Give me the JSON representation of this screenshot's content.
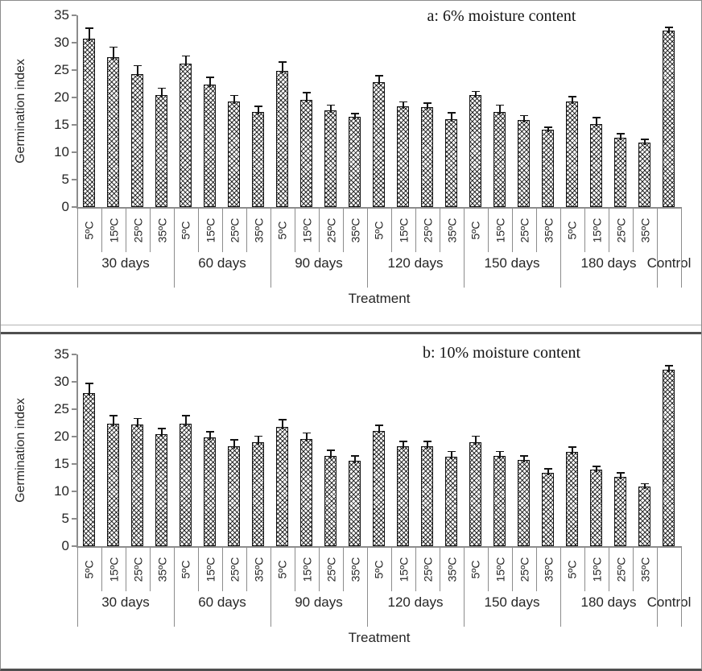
{
  "colors": {
    "bar_fill": "#ffffff",
    "bar_hatch": "#000000",
    "axis": "#8c8c8c",
    "text": "#262626"
  },
  "chart_data": [
    {
      "type": "bar",
      "panel": "a",
      "title": "a: 6% moisture content",
      "ylabel": "Germination index",
      "xlabel": "Treatment",
      "ylim": [
        0,
        35
      ],
      "yticks": [
        0,
        5,
        10,
        15,
        20,
        25,
        30,
        35
      ],
      "grid": false,
      "bar_pattern": "diagonal-crosshatch",
      "error_bars": "upper whisker with cap",
      "groups": [
        {
          "label": "30 days",
          "categories": [
            "5ºC",
            "15ºC",
            "25ºC",
            "35ºC"
          ],
          "values": [
            30.7,
            27.3,
            24.3,
            20.4
          ],
          "errors": [
            2.1,
            2.0,
            1.6,
            1.4
          ]
        },
        {
          "label": "60 days",
          "categories": [
            "5ºC",
            "15ºC",
            "25ºC",
            "35ºC"
          ],
          "values": [
            26.2,
            22.4,
            19.2,
            17.4
          ],
          "errors": [
            1.5,
            1.4,
            1.3,
            1.1
          ]
        },
        {
          "label": "90 days",
          "categories": [
            "5ºC",
            "15ºC",
            "25ºC",
            "35ºC"
          ],
          "values": [
            24.8,
            19.6,
            17.7,
            16.4
          ],
          "errors": [
            1.8,
            1.4,
            1.0,
            0.8
          ]
        },
        {
          "label": "120 days",
          "categories": [
            "5ºC",
            "15ºC",
            "25ºC",
            "35ºC"
          ],
          "values": [
            22.8,
            18.4,
            18.2,
            16.1
          ],
          "errors": [
            1.3,
            0.9,
            0.9,
            1.2
          ]
        },
        {
          "label": "150 days",
          "categories": [
            "5ºC",
            "15ºC",
            "25ºC",
            "35ºC"
          ],
          "values": [
            20.4,
            17.3,
            15.9,
            14.1
          ],
          "errors": [
            0.8,
            1.4,
            0.9,
            0.6
          ]
        },
        {
          "label": "180 days",
          "categories": [
            "5ºC",
            "15ºC",
            "25ºC",
            "35ºC"
          ],
          "values": [
            19.2,
            15.1,
            12.7,
            11.8
          ],
          "errors": [
            1.1,
            1.3,
            0.8,
            0.7
          ]
        },
        {
          "label": "Control",
          "categories": [
            ""
          ],
          "values": [
            32.2
          ],
          "errors": [
            0.7
          ]
        }
      ]
    },
    {
      "type": "bar",
      "panel": "b",
      "title": "b: 10% moisture content",
      "ylabel": "Germination index",
      "xlabel": "Treatment",
      "ylim": [
        0,
        35
      ],
      "yticks": [
        0,
        5,
        10,
        15,
        20,
        25,
        30,
        35
      ],
      "grid": false,
      "bar_pattern": "diagonal-crosshatch",
      "error_bars": "upper whisker with cap",
      "groups": [
        {
          "label": "30 days",
          "categories": [
            "5ºC",
            "15ºC",
            "25ºC",
            "35ºC"
          ],
          "values": [
            28.0,
            22.4,
            22.2,
            20.5
          ],
          "errors": [
            1.8,
            1.5,
            1.2,
            1.1
          ]
        },
        {
          "label": "60 days",
          "categories": [
            "5ºC",
            "15ºC",
            "25ºC",
            "35ºC"
          ],
          "values": [
            22.4,
            19.8,
            18.2,
            18.9
          ],
          "errors": [
            1.5,
            1.2,
            1.3,
            1.3
          ]
        },
        {
          "label": "90 days",
          "categories": [
            "5ºC",
            "15ºC",
            "25ºC",
            "35ºC"
          ],
          "values": [
            21.8,
            19.6,
            16.4,
            15.6
          ],
          "errors": [
            1.4,
            1.2,
            1.2,
            1.0
          ]
        },
        {
          "label": "120 days",
          "categories": [
            "5ºC",
            "15ºC",
            "25ºC",
            "35ºC"
          ],
          "values": [
            21.0,
            18.2,
            18.2,
            16.3
          ],
          "errors": [
            1.2,
            1.0,
            1.0,
            1.1
          ]
        },
        {
          "label": "150 days",
          "categories": [
            "5ºC",
            "15ºC",
            "25ºC",
            "35ºC"
          ],
          "values": [
            19.0,
            16.4,
            15.7,
            13.4
          ],
          "errors": [
            1.2,
            1.0,
            0.9,
            0.8
          ]
        },
        {
          "label": "180 days",
          "categories": [
            "5ºC",
            "15ºC",
            "25ºC",
            "35ºC"
          ],
          "values": [
            17.2,
            13.9,
            12.6,
            10.9
          ],
          "errors": [
            1.0,
            0.8,
            0.9,
            0.6
          ]
        },
        {
          "label": "Control",
          "categories": [
            ""
          ],
          "values": [
            32.2
          ],
          "errors": [
            0.9
          ]
        }
      ]
    }
  ]
}
